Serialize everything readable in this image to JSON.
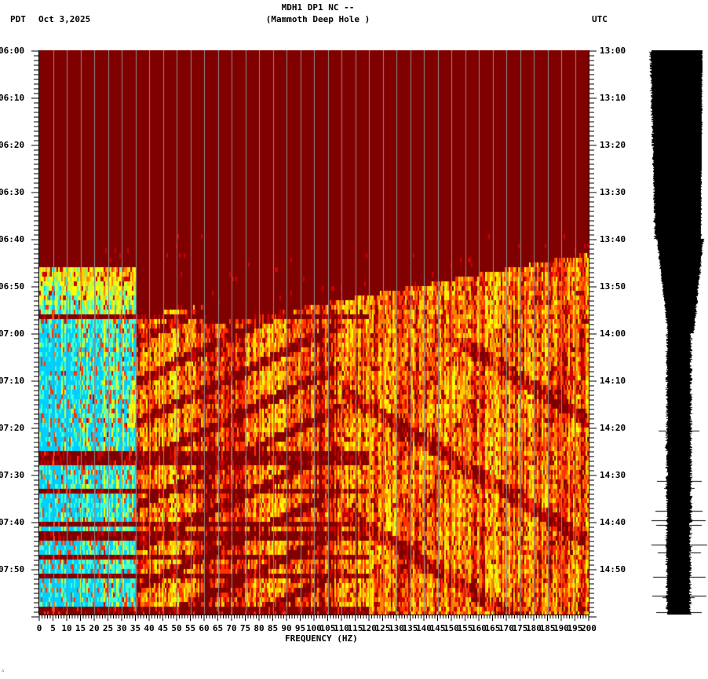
{
  "header": {
    "station_line": "MDH1 DP1 NC --",
    "station_name": "(Mammoth Deep Hole )",
    "left_timezone": "PDT",
    "date": "Oct 3,2025",
    "right_timezone": "UTC"
  },
  "footer_mark": "∴",
  "chart_data": {
    "type": "heatmap",
    "title": "MDH1 DP1 NC -- (Mammoth Deep Hole )",
    "subtitle": "Oct 3,2025",
    "xlabel": "FREQUENCY (HZ)",
    "ylabel_left": "PDT",
    "ylabel_right": "UTC",
    "xlim": [
      0,
      200
    ],
    "x_ticks": [
      "0",
      "5",
      "10",
      "15",
      "20",
      "25",
      "30",
      "35",
      "40",
      "45",
      "50",
      "55",
      "60",
      "65",
      "70",
      "75",
      "80",
      "85",
      "90",
      "95",
      "100",
      "105",
      "110",
      "115",
      "120",
      "125",
      "130",
      "135",
      "140",
      "145",
      "150",
      "155",
      "160",
      "165",
      "170",
      "175",
      "180",
      "185",
      "190",
      "195",
      "200"
    ],
    "y_ticks_left": [
      "06:00",
      "06:10",
      "06:20",
      "06:30",
      "06:40",
      "06:50",
      "07:00",
      "07:10",
      "07:20",
      "07:30",
      "07:40",
      "07:50"
    ],
    "y_ticks_right": [
      "13:00",
      "13:10",
      "13:20",
      "13:30",
      "13:40",
      "13:50",
      "14:00",
      "14:10",
      "14:20",
      "14:30",
      "14:40",
      "14:50"
    ],
    "ylim_left": [
      "06:00",
      "08:00"
    ],
    "grid": {
      "vertical_every_hz": 5,
      "color": "#8c8c8c"
    },
    "colormap": [
      "#800000",
      "#cc0000",
      "#ff3300",
      "#ff8000",
      "#ffd000",
      "#ffff00",
      "#c0ff40",
      "#40ffd0",
      "#00d0ff"
    ],
    "background_color": "#800000",
    "features": [
      {
        "description": "Quiet (dark red) from 06:00 to ~06:45 across all frequencies"
      },
      {
        "description": "Broadband energy onset ~06:45 at high frequencies (100-200 Hz)"
      },
      {
        "description": "Strong low-frequency energy (0-35 Hz, yellow/cyan) from ~06:47 to 08:00"
      },
      {
        "description": "Diagonal sweeping harmonic bands (gliding tremor) from ~06:55 to 08:00 in 25-120 Hz"
      },
      {
        "description": "Horizontal banding/gaps in 07:25-08:00 below ~70 Hz"
      },
      {
        "description": "Narrow quiet line near 60 Hz from ~07:30 onward"
      }
    ],
    "side_panel": {
      "type": "seismogram_trace",
      "color": "#000000",
      "description": "Vertical helicorder trace, amplitude widening after ~13:45 UTC with spikes after 14:20 UTC"
    }
  }
}
